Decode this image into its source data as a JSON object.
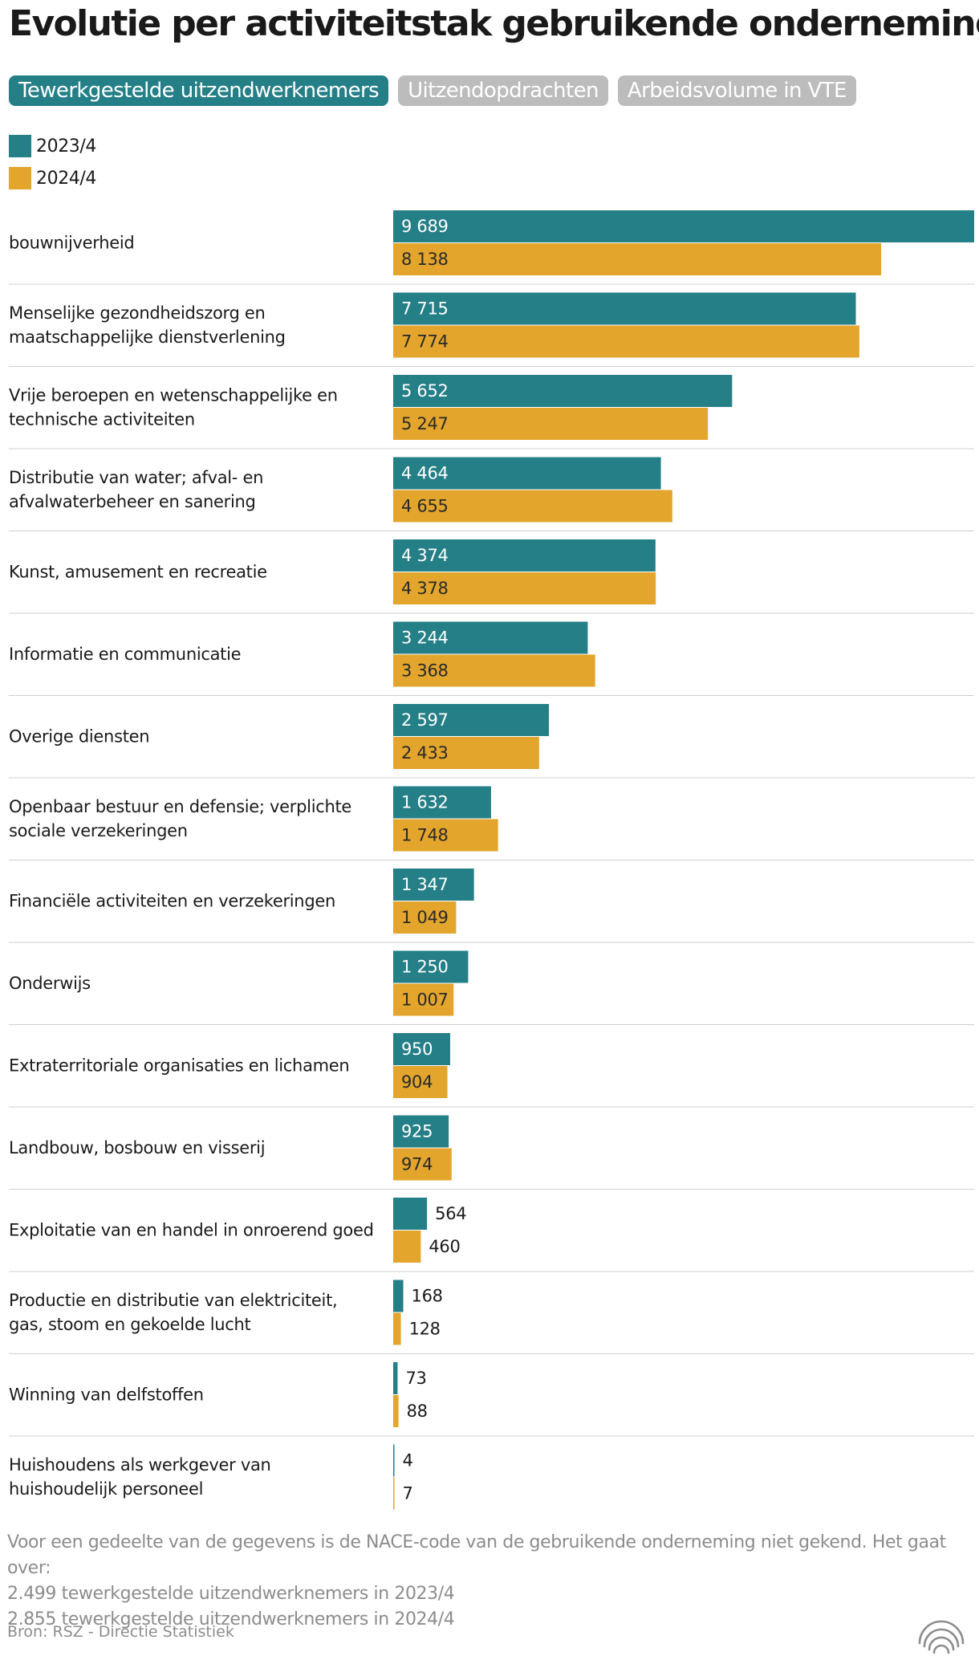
{
  "title": "Evolutie per activiteitstak gebruikende onderneming",
  "tabs": [
    {
      "label": "Tewerkgestelde uitzendwerknemers",
      "active": true
    },
    {
      "label": "Uitzendopdrachten",
      "active": false
    },
    {
      "label": "Arbeidsvolume in VTE",
      "active": false
    }
  ],
  "colors": {
    "series_2023": "#257f87",
    "series_2024": "#e3a52b",
    "tab_active": "#257f87",
    "tab_inactive": "#bcbcbc"
  },
  "chart_data": {
    "type": "bar",
    "orientation": "horizontal",
    "title": "",
    "legend_position": "top-left",
    "grid": false,
    "categories": [
      "bouwnijverheid",
      "Menselijke gezondheidszorg en maatschappelijke dienstverlening",
      "Vrije beroepen en wetenschappelijke en technische activiteiten",
      "Distributie van water; afval- en afvalwaterbeheer en sanering",
      "Kunst, amusement en recreatie",
      "Informatie en communicatie",
      "Overige diensten",
      "Openbaar bestuur en defensie; verplichte sociale verzekeringen",
      "Financiële activiteiten en verzekeringen",
      "Onderwijs",
      "Extraterritoriale organisaties en lichamen",
      "Landbouw, bosbouw en visserij",
      "Exploitatie van en handel in onroerend goed",
      "Productie en distributie van elektriciteit, gas, stoom en gekoelde lucht",
      "Winning van delfstoffen",
      "Huishoudens als werkgever van huishoudelijk personeel"
    ],
    "series": [
      {
        "name": "2023/4",
        "values": [
          9689,
          7715,
          5652,
          4464,
          4374,
          3244,
          2597,
          1632,
          1347,
          1250,
          950,
          925,
          564,
          168,
          73,
          4
        ],
        "labels": [
          "9 689",
          "7 715",
          "5 652",
          "4 464",
          "4 374",
          "3 244",
          "2 597",
          "1 632",
          "1 347",
          "1 250",
          "950",
          "925",
          "564",
          "168",
          "73",
          "4"
        ]
      },
      {
        "name": "2024/4",
        "values": [
          8138,
          7774,
          5247,
          4655,
          4378,
          3368,
          2433,
          1748,
          1049,
          1007,
          904,
          974,
          460,
          128,
          88,
          7
        ],
        "labels": [
          "8 138",
          "7 774",
          "5 247",
          "4 655",
          "4 378",
          "3 368",
          "2 433",
          "1 748",
          "1 049",
          "1 007",
          "904",
          "974",
          "460",
          "128",
          "88",
          "7"
        ]
      }
    ],
    "xlim": [
      0,
      9689
    ]
  },
  "note": [
    "Voor een gedeelte van de gegevens is de NACE-code van de gebruikende onderneming niet gekend. Het gaat over:",
    "2.499 tewerkgestelde uitzendwerknemers in 2023/4",
    "2.855 tewerkgestelde uitzendwerknemers in 2024/4"
  ],
  "source": "Bron: RSZ - Directie Statistiek",
  "logo_icon": "stacked-arcs-logo-icon"
}
